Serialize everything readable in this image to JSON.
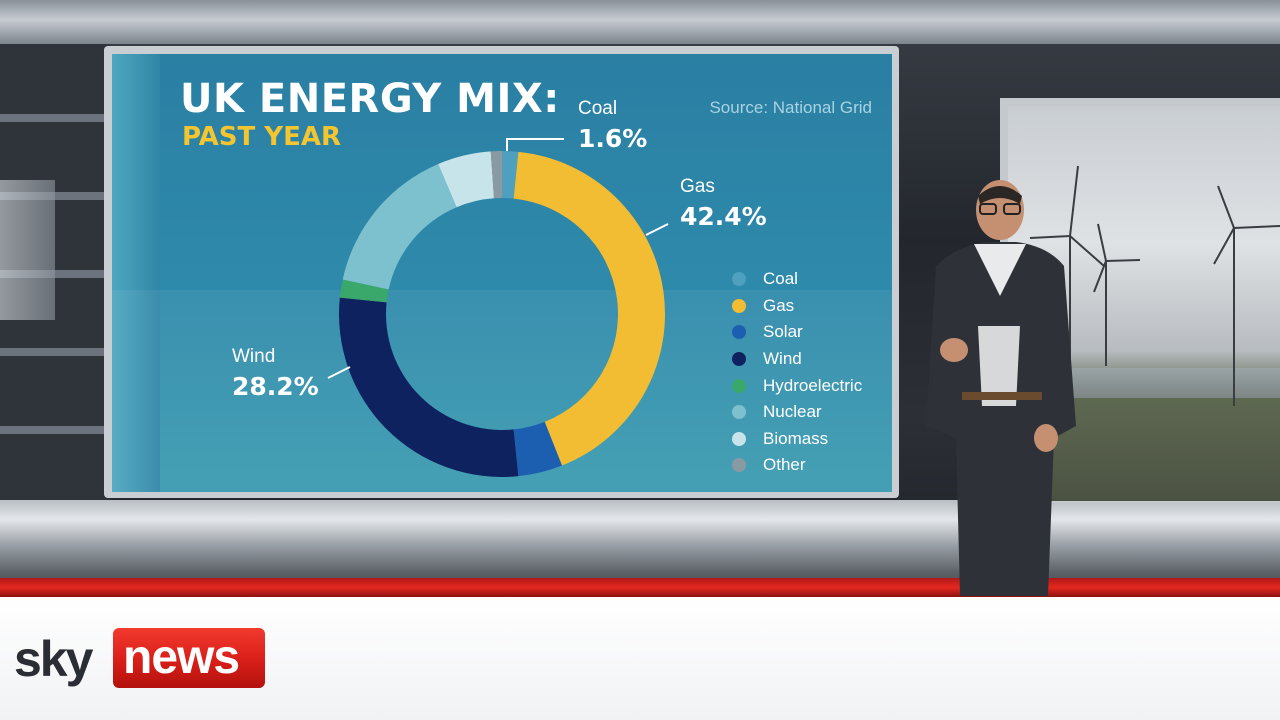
{
  "graphic": {
    "title": "UK ENERGY MIX:",
    "subtitle": "PAST YEAR",
    "source": "Source: National Grid"
  },
  "callouts": {
    "coal": {
      "name": "Coal",
      "value": "1.6%"
    },
    "gas": {
      "name": "Gas",
      "value": "42.4%"
    },
    "wind": {
      "name": "Wind",
      "value": "28.2%"
    }
  },
  "chart_data": {
    "type": "pie",
    "title": "UK ENERGY MIX:",
    "subtitle": "PAST YEAR",
    "unit": "%",
    "legend_position": "right",
    "categories": [
      "Coal",
      "Gas",
      "Solar",
      "Wind",
      "Hydroelectric",
      "Nuclear",
      "Biomass",
      "Other"
    ],
    "values": [
      1.6,
      42.4,
      4.4,
      28.2,
      1.8,
      15.2,
      5.3,
      1.1
    ],
    "colors": [
      "#4f9fbe",
      "#f2bd32",
      "#1c5fb0",
      "#0f2260",
      "#3aa86a",
      "#7cc1cd",
      "#c7e4ea",
      "#8a9aa3"
    ],
    "donut": true
  },
  "logo": {
    "sky": "sky",
    "news": "news"
  }
}
